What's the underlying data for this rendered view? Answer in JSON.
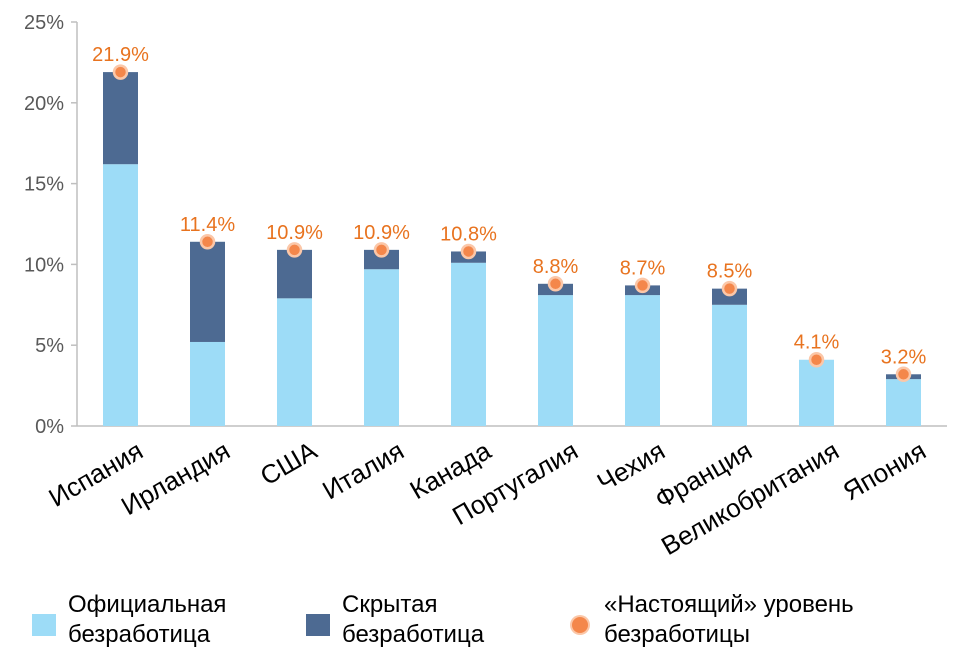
{
  "chart_data": {
    "type": "bar",
    "stacked": true,
    "categories": [
      "Испания",
      "Ирландия",
      "США",
      "Италия",
      "Канада",
      "Португалия",
      "Чехия",
      "Франция",
      "Великобритания",
      "Япония"
    ],
    "series": [
      {
        "name": "Официальная безработица",
        "values": [
          16.2,
          5.2,
          7.9,
          9.7,
          10.1,
          8.1,
          8.1,
          7.5,
          4.1,
          2.9
        ],
        "color": "#9ddcf7"
      },
      {
        "name": "Скрытая безработица",
        "values": [
          5.7,
          6.2,
          3.0,
          1.2,
          0.7,
          0.7,
          0.6,
          1.0,
          0.0,
          0.3
        ],
        "color": "#4d6a92"
      }
    ],
    "totals": {
      "name": "«Настоящий» уровень безработицы",
      "values": [
        21.9,
        11.4,
        10.9,
        10.9,
        10.8,
        8.8,
        8.7,
        8.5,
        4.1,
        3.2
      ],
      "labels": [
        "21.9%",
        "11.4%",
        "10.9%",
        "10.9%",
        "10.8%",
        "8.8%",
        "8.7%",
        "8.5%",
        "4.1%",
        "3.2%"
      ],
      "color": "#f4874b"
    },
    "ylim": [
      0,
      25
    ],
    "yticks": [
      0,
      5,
      10,
      15,
      20,
      25
    ],
    "ytick_labels": [
      "0%",
      "5%",
      "10%",
      "15%",
      "20%",
      "25%"
    ],
    "legend_position": "bottom",
    "grid": false
  },
  "legend": {
    "official": "Официальная\nбезработица",
    "hidden": "Скрытая\nбезработица",
    "real": "«Настоящий» уровень\nбезработицы"
  }
}
